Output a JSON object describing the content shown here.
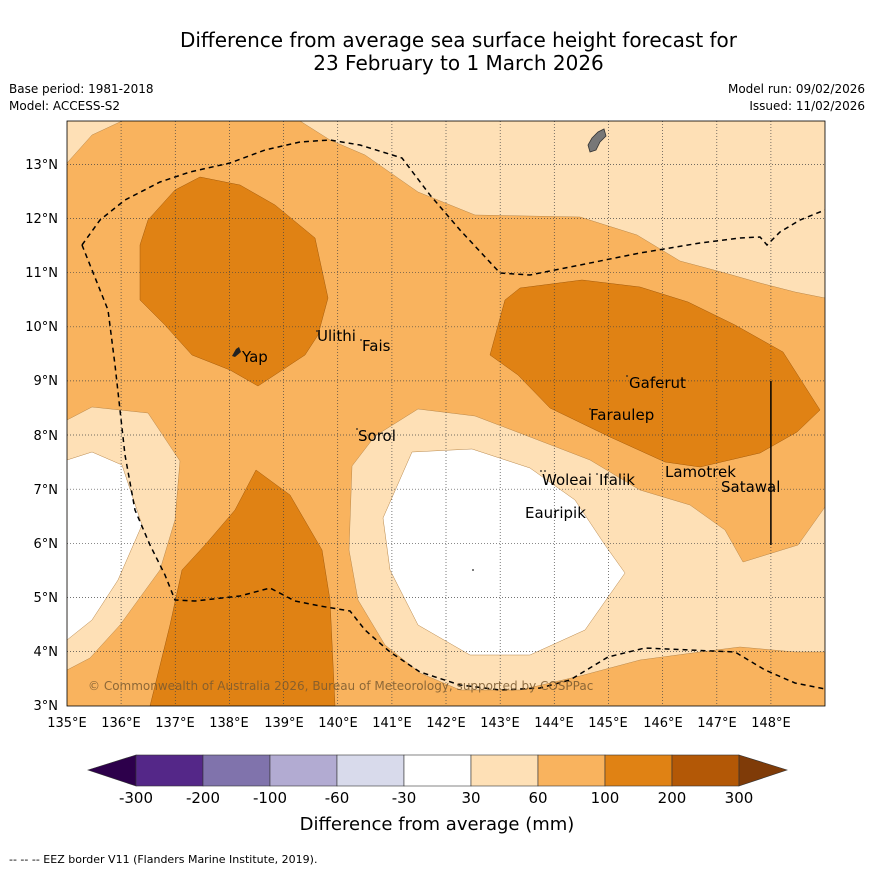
{
  "title": {
    "line1": "Difference from average sea surface height forecast for",
    "line2": "23 February to 1 March 2026"
  },
  "meta": {
    "base_period": "Base period: 1981-2018",
    "model": "Model: ACCESS-S2",
    "model_run": "Model run: 09/02/2026",
    "issued": "Issued: 11/02/2026"
  },
  "map": {
    "lat_labels": [
      "13°N",
      "12°N",
      "11°N",
      "10°N",
      "9°N",
      "8°N",
      "7°N",
      "6°N",
      "5°N",
      "4°N",
      "3°N"
    ],
    "lon_labels": [
      "135°E",
      "136°E",
      "137°E",
      "138°E",
      "139°E",
      "140°E",
      "141°E",
      "142°E",
      "143°E",
      "144°E",
      "145°E",
      "146°E",
      "147°E",
      "148°E"
    ],
    "places": {
      "yap": "Yap",
      "ulithi": "Ulithi",
      "fais": "Fais",
      "sorol": "Sorol",
      "gaferut": "Gaferut",
      "faraulep": "Faraulep",
      "woleai": "Woleai",
      "ifalik": "Ifalik",
      "eauripik": "Eauripik",
      "lamotrek": "Lamotrek",
      "satawal": "Satawal"
    },
    "copyright": "© Commonwealth of Australia 2026, Bureau of Meteorology, supported by COSPPac",
    "colors": {
      "c30_60": "#fee0b6",
      "c60_100": "#f9b35e",
      "c100_200": "#e08214",
      "ocean": "#ffffff"
    }
  },
  "colorbar": {
    "ticks": [
      "-300",
      "-200",
      "-100",
      "-60",
      "-30",
      "30",
      "60",
      "100",
      "200",
      "300"
    ],
    "label": "Difference from average (mm)",
    "colors": [
      "#2d004b",
      "#542788",
      "#8073ac",
      "#b2abd2",
      "#d8daeb",
      "#ffffff",
      "#fee0b6",
      "#f9b35e",
      "#e08214",
      "#b35806",
      "#7f3b08"
    ]
  },
  "footer": "-- -- -- EEZ border V11 (Flanders Marine Institute, 2019)."
}
